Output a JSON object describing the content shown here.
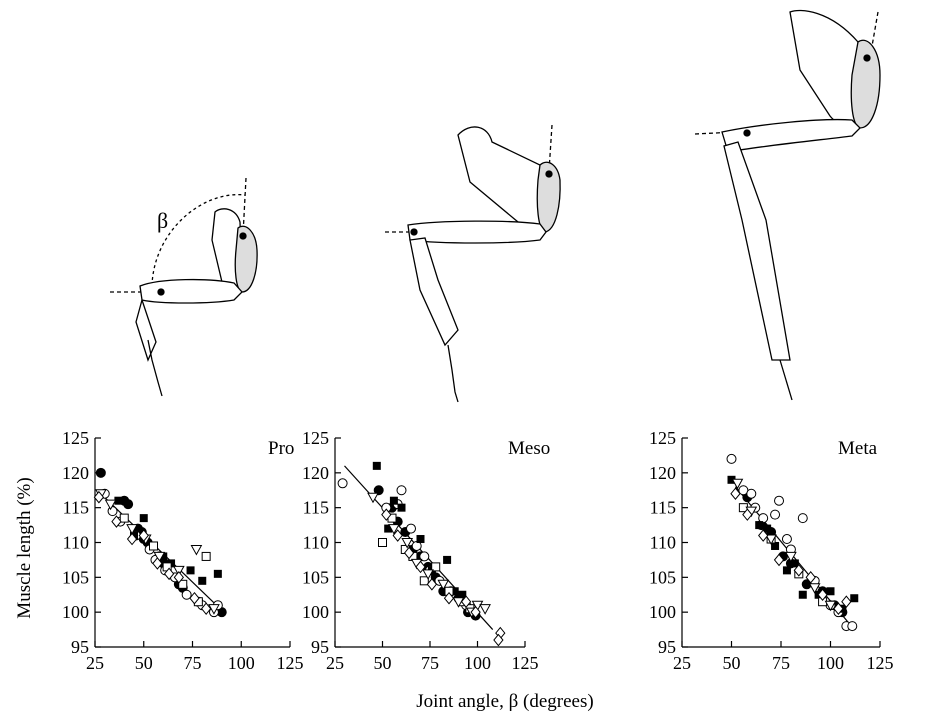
{
  "figure": {
    "xlabel": "Joint angle, β (degrees)",
    "ylabel": "Muscle length (%)",
    "angle_symbol": "β"
  },
  "chart_data": [
    {
      "type": "scatter",
      "title": "Pro",
      "xlabel": "Joint angle, β (degrees)",
      "ylabel": "Muscle length (%)",
      "xlim": [
        25,
        125
      ],
      "ylim": [
        95,
        125
      ],
      "xticks": [
        25,
        50,
        75,
        100,
        125
      ],
      "yticks": [
        95,
        100,
        105,
        110,
        115,
        120,
        125
      ],
      "grid": false,
      "fit_line": [
        [
          28,
          117
        ],
        [
          91,
          100
        ]
      ],
      "series": [
        {
          "marker": "filled-circle",
          "x": [
            28,
            40,
            42,
            47,
            49,
            50,
            52,
            58,
            60,
            68,
            70,
            78,
            90
          ],
          "y": [
            120,
            116,
            115.5,
            112,
            111.5,
            110.5,
            110,
            108,
            107,
            104,
            103.5,
            101.5,
            100
          ]
        },
        {
          "marker": "open-circle",
          "x": [
            30,
            34,
            38,
            46,
            53,
            56,
            61,
            66,
            72,
            80,
            86,
            88
          ],
          "y": [
            117,
            114.5,
            113,
            111,
            109,
            107.5,
            106,
            105,
            102.5,
            101,
            100,
            101
          ]
        },
        {
          "marker": "filled-square",
          "x": [
            37,
            45,
            50,
            60,
            64,
            74,
            80,
            88
          ],
          "y": [
            116,
            111,
            113.5,
            108,
            107,
            106,
            104.5,
            105.5
          ]
        },
        {
          "marker": "open-square",
          "x": [
            40,
            55,
            62,
            70,
            78,
            82
          ],
          "y": [
            113.5,
            109.5,
            106.5,
            104,
            101.5,
            108
          ]
        },
        {
          "marker": "open-triangle-down",
          "x": [
            28,
            33,
            44,
            51,
            58,
            68,
            77,
            86
          ],
          "y": [
            117,
            115.5,
            112,
            110.5,
            108,
            106,
            109,
            100.5
          ]
        },
        {
          "marker": "open-diamond",
          "x": [
            27,
            36,
            44,
            50,
            57,
            63,
            68,
            76,
            82
          ],
          "y": [
            116.5,
            113,
            110.5,
            111,
            107,
            105.5,
            105,
            102,
            100.5
          ]
        }
      ]
    },
    {
      "type": "scatter",
      "title": "Meso",
      "xlabel": "Joint angle, β (degrees)",
      "ylabel": "Muscle length (%)",
      "xlim": [
        25,
        125
      ],
      "ylim": [
        95,
        125
      ],
      "xticks": [
        25,
        50,
        75,
        100,
        125
      ],
      "yticks": [
        95,
        100,
        105,
        110,
        115,
        120,
        125
      ],
      "grid": false,
      "fit_line": [
        [
          30,
          121
        ],
        [
          108,
          97.5
        ]
      ],
      "series": [
        {
          "marker": "filled-circle",
          "x": [
            48,
            55,
            58,
            62,
            66,
            70,
            74,
            78,
            82,
            90,
            95,
            99
          ],
          "y": [
            117.5,
            115,
            113,
            111.5,
            109,
            108,
            106.5,
            105,
            103,
            102,
            100,
            99.5
          ]
        },
        {
          "marker": "open-circle",
          "x": [
            29,
            52,
            58,
            60,
            65,
            68,
            72,
            75,
            80,
            86,
            94
          ],
          "y": [
            118.5,
            115,
            115.5,
            117.5,
            112,
            109.5,
            108,
            106,
            104.5,
            103,
            101
          ]
        },
        {
          "marker": "filled-square",
          "x": [
            47,
            53,
            56,
            60,
            70,
            76,
            84,
            88,
            92
          ],
          "y": [
            121,
            112,
            116,
            115,
            110.5,
            106,
            107.5,
            103,
            102.5
          ]
        },
        {
          "marker": "open-square",
          "x": [
            50,
            55,
            62,
            66,
            72,
            78,
            85,
            92,
            96
          ],
          "y": [
            110,
            113.5,
            109,
            108,
            104.5,
            106.5,
            103,
            101.5,
            100.5
          ]
        },
        {
          "marker": "open-triangle-down",
          "x": [
            45,
            56,
            63,
            68,
            74,
            82,
            90,
            97,
            100,
            104
          ],
          "y": [
            116.5,
            112,
            110,
            107,
            105.5,
            104,
            101.5,
            100,
            101,
            100.5
          ]
        },
        {
          "marker": "open-diamond",
          "x": [
            52,
            58,
            64,
            70,
            76,
            85,
            94,
            99,
            112,
            111
          ],
          "y": [
            114,
            111,
            108.5,
            106.5,
            104,
            102,
            101.5,
            100,
            97,
            96
          ]
        }
      ]
    },
    {
      "type": "scatter",
      "title": "Meta",
      "xlabel": "Joint angle, β (degrees)",
      "ylabel": "Muscle length (%)",
      "xlim": [
        25,
        125
      ],
      "ylim": [
        95,
        125
      ],
      "xticks": [
        25,
        50,
        75,
        100,
        125
      ],
      "yticks": [
        95,
        100,
        105,
        110,
        115,
        120,
        125
      ],
      "grid": false,
      "fit_line": [
        [
          52,
          118
        ],
        [
          112,
          97.5
        ]
      ],
      "series": [
        {
          "marker": "filled-circle",
          "x": [
            58,
            65,
            70,
            76,
            80,
            88,
            96,
            102,
            106
          ],
          "y": [
            116.5,
            112.5,
            111.5,
            108,
            107,
            104,
            103,
            101,
            100
          ]
        },
        {
          "marker": "open-circle",
          "x": [
            50,
            56,
            60,
            62,
            66,
            72,
            74,
            78,
            80,
            86,
            92,
            100,
            104,
            108,
            111
          ],
          "y": [
            122,
            117.5,
            117,
            115,
            113.5,
            114,
            116,
            110.5,
            109,
            113.5,
            104.5,
            101,
            100,
            98,
            98
          ]
        },
        {
          "marker": "filled-square",
          "x": [
            50,
            64,
            68,
            72,
            78,
            82,
            86,
            94,
            100,
            106,
            112
          ],
          "y": [
            119,
            112.5,
            112,
            109.5,
            106,
            107,
            102.5,
            102.5,
            103,
            100.5,
            102
          ]
        },
        {
          "marker": "open-square",
          "x": [
            56,
            70,
            84,
            96
          ],
          "y": [
            115,
            110.5,
            105.5,
            101.5
          ]
        },
        {
          "marker": "open-triangle-down",
          "x": [
            53,
            60,
            70,
            80,
            92,
            100
          ],
          "y": [
            118.5,
            114.5,
            110.5,
            108,
            103.5,
            101
          ]
        },
        {
          "marker": "open-diamond",
          "x": [
            52,
            58,
            66,
            74,
            84,
            90,
            96,
            104,
            108
          ],
          "y": [
            117,
            114,
            111,
            107.5,
            106,
            105,
            102.5,
            100.5,
            101.5
          ]
        }
      ]
    }
  ]
}
